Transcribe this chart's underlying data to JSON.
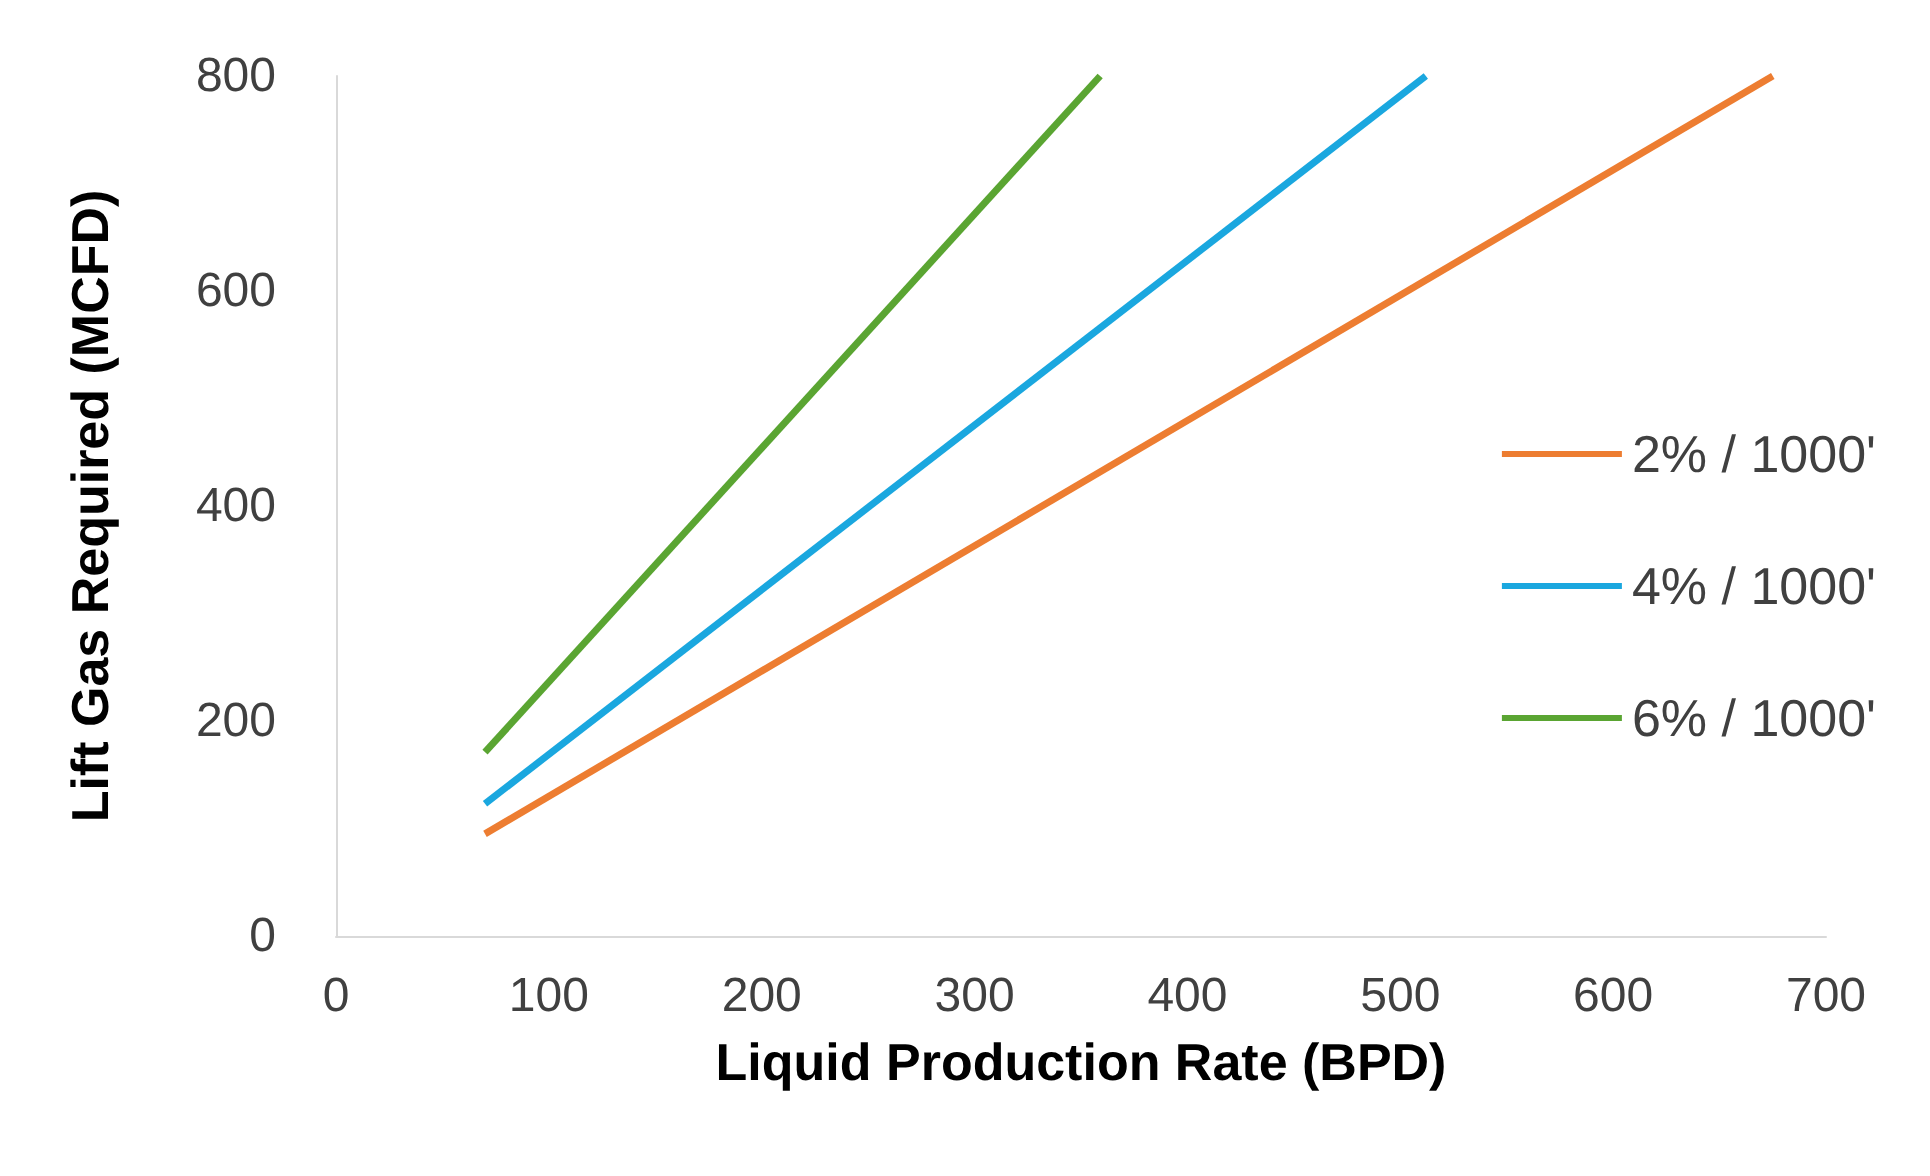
{
  "chart_data": {
    "type": "line",
    "xlabel": "Liquid Production Rate (BPD)",
    "ylabel": "Lift Gas Required (MCFD)",
    "series": [
      {
        "name": "2% / 1000'",
        "color": "#ed7d31",
        "x": [
          70,
          675
        ],
        "values": [
          95,
          800
        ]
      },
      {
        "name": "4% / 1000'",
        "color": "#1aa7df",
        "x": [
          70,
          512
        ],
        "values": [
          123,
          800
        ]
      },
      {
        "name": "6% / 1000'",
        "color": "#5aa532",
        "x": [
          70,
          359
        ],
        "values": [
          171,
          800
        ]
      }
    ],
    "xlim": [
      0,
      700
    ],
    "xticks": [
      0,
      100,
      200,
      300,
      400,
      500,
      600,
      700
    ],
    "ylim": [
      0,
      800
    ],
    "yticks": [
      0,
      200,
      400,
      600,
      800
    ],
    "grid": false,
    "legend": "right",
    "marker": "none",
    "line_style": "solid"
  }
}
